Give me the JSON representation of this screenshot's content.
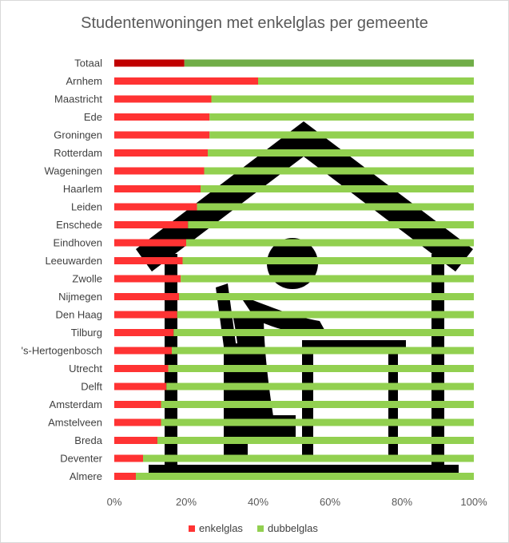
{
  "chart_data": {
    "type": "bar",
    "orientation": "horizontal",
    "stacked": "percent",
    "title": "Studentenwoningen met enkelglas per gemeente",
    "categories": [
      "Totaal",
      "Arnhem",
      "Maastricht",
      "Ede",
      "Groningen",
      "Rotterdam",
      "Wageningen",
      "Haarlem",
      "Leiden",
      "Enschede",
      "Eindhoven",
      "Leeuwarden",
      "Zwolle",
      "Nijmegen",
      "Den Haag",
      "Tilburg",
      "'s-Hertogenbosch",
      "Utrecht",
      "Delft",
      "Amsterdam",
      "Amstelveen",
      "Breda",
      "Deventer",
      "Almere"
    ],
    "series": [
      {
        "name": "enkelglas",
        "color": "#ff3333",
        "values": [
          19.5,
          40,
          27,
          26.5,
          26.5,
          26,
          25,
          24,
          23,
          20.5,
          20,
          19,
          18.5,
          18,
          17.5,
          16.5,
          16,
          15,
          14.5,
          13,
          13,
          12,
          8,
          6
        ]
      },
      {
        "name": "dubbelglas",
        "color": "#92d050",
        "values": [
          80.5,
          60,
          73,
          73.5,
          73.5,
          74,
          75,
          76,
          77,
          79.5,
          80,
          81,
          81.5,
          82,
          82.5,
          83.5,
          84,
          85,
          85.5,
          87,
          87,
          88,
          92,
          94
        ]
      }
    ],
    "highlight": {
      "category": "Totaal",
      "colors": [
        "#c00000",
        "#70ad47"
      ]
    },
    "xlim": [
      0,
      100
    ],
    "xticks": [
      "0%",
      "20%",
      "40%",
      "60%",
      "80%",
      "100%"
    ],
    "legend_position": "bottom",
    "grid": false
  },
  "background_illustration": "student-house-icon"
}
